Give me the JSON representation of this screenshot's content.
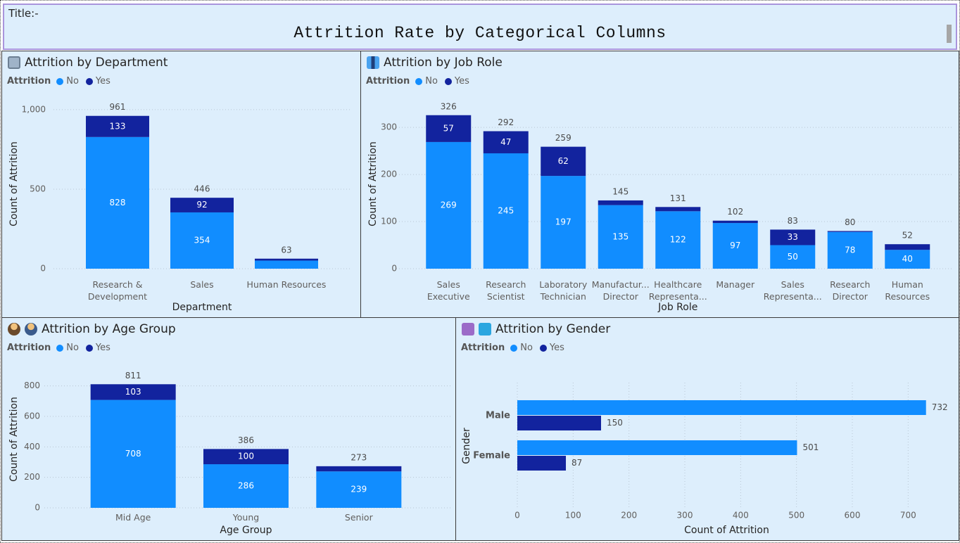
{
  "header": {
    "label": "Title:-",
    "title": "Attrition Rate by Categorical Columns"
  },
  "chart_data": [
    {
      "type": "stacked_bar",
      "title": "Attrition by Department",
      "legend_title": "Attrition",
      "x_label": "Department",
      "y_label": "Count of Attrition",
      "categories": [
        "Research &\nDevelopment",
        "Sales",
        "Human Resources"
      ],
      "series": [
        {
          "name": "No",
          "color": "#118dff",
          "values": [
            828,
            354,
            51
          ]
        },
        {
          "name": "Yes",
          "color": "#12239e",
          "values": [
            133,
            92,
            12
          ]
        }
      ],
      "totals": [
        961,
        446,
        63
      ],
      "ylim": [
        0,
        1066
      ],
      "yticks": [
        0,
        500,
        {
          "value": 1000,
          "label": "1,000"
        }
      ],
      "grid": true
    },
    {
      "type": "stacked_bar",
      "title": "Attrition by Job Role",
      "legend_title": "Attrition",
      "x_label": "Job Role",
      "y_label": "Count of Attrition",
      "categories": [
        "Sales\nExecutive",
        "Research\nScientist",
        "Laboratory\nTechnician",
        "Manufactur...\nDirector",
        "Healthcare\nRepresenta...",
        "Manager",
        "Sales\nRepresenta...",
        "Research\nDirector",
        "Human\nResources"
      ],
      "series": [
        {
          "name": "No",
          "color": "#118dff",
          "values": [
            269,
            245,
            197,
            135,
            122,
            97,
            50,
            78,
            40
          ]
        },
        {
          "name": "Yes",
          "color": "#12239e",
          "values": [
            57,
            47,
            62,
            10,
            9,
            5,
            33,
            2,
            12
          ]
        }
      ],
      "totals": [
        326,
        292,
        259,
        145,
        131,
        102,
        83,
        80,
        52
      ],
      "ylim": [
        0,
        360
      ],
      "yticks": [
        0,
        100,
        200,
        300
      ],
      "grid": true
    },
    {
      "type": "stacked_bar",
      "title": "Attrition by Age Group",
      "legend_title": "Attrition",
      "x_label": "Age Group",
      "y_label": "Count of Attrition",
      "categories": [
        "Mid Age",
        "Young",
        "Senior"
      ],
      "series": [
        {
          "name": "No",
          "color": "#118dff",
          "values": [
            708,
            286,
            239
          ]
        },
        {
          "name": "Yes",
          "color": "#12239e",
          "values": [
            103,
            100,
            34
          ]
        }
      ],
      "totals": [
        811,
        386,
        273
      ],
      "ylim": [
        0,
        900
      ],
      "yticks": [
        0,
        200,
        400,
        600,
        800
      ],
      "grid": true
    },
    {
      "type": "grouped_hbar",
      "title": "Attrition by Gender",
      "legend_title": "Attrition",
      "x_label": "Count of Attrition",
      "y_label": "Gender",
      "categories": [
        "Male",
        "Female"
      ],
      "series": [
        {
          "name": "No",
          "color": "#118dff",
          "values": [
            732,
            501
          ]
        },
        {
          "name": "Yes",
          "color": "#12239e",
          "values": [
            150,
            87
          ]
        }
      ],
      "xlim": [
        0,
        750
      ],
      "xticks": [
        0,
        100,
        200,
        300,
        400,
        500,
        600,
        700
      ],
      "grid": true
    }
  ]
}
